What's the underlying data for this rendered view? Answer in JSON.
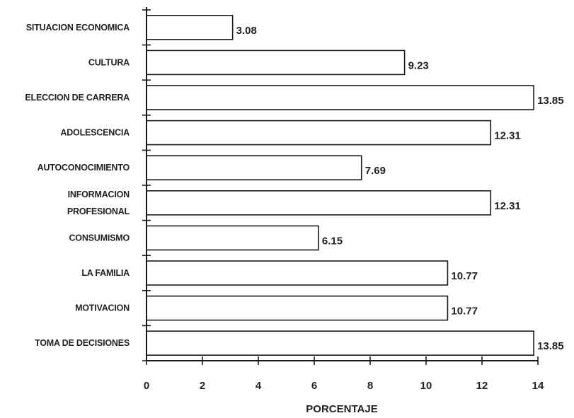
{
  "chart_data": {
    "type": "bar",
    "orientation": "horizontal",
    "categories": [
      "SITUACION ECONOMICA",
      "CULTURA",
      "ELECCION DE CARRERA",
      "ADOLESCENCIA",
      "AUTOCONOCIMIENTO",
      "INFORMACION PROFESIONAL",
      "CONSUMISMO",
      "LA FAMILIA",
      "MOTIVACION",
      "TOMA DE DECISIONES"
    ],
    "category_label_lines": [
      [
        "SITUACION ECONOMICA"
      ],
      [
        "CULTURA"
      ],
      [
        "ELECCION DE CARRERA"
      ],
      [
        "ADOLESCENCIA"
      ],
      [
        "AUTOCONOCIMIENTO"
      ],
      [
        "INFORMACION",
        "PROFESIONAL"
      ],
      [
        "CONSUMISMO"
      ],
      [
        "LA FAMILIA"
      ],
      [
        "MOTIVACION"
      ],
      [
        "TOMA DE DECISIONES"
      ]
    ],
    "values": [
      3.08,
      9.23,
      13.85,
      12.31,
      7.69,
      12.31,
      6.15,
      10.77,
      10.77,
      13.85
    ],
    "value_labels": [
      "3.08",
      "9.23",
      "13.85",
      "12.31",
      "7.69",
      "12.31",
      "6.15",
      "10.77",
      "10.77",
      "13.85"
    ],
    "title": "",
    "xlabel": "PORCENTAJE",
    "ylabel": "",
    "xlim": [
      0,
      14
    ],
    "xticks": [
      0,
      2,
      4,
      6,
      8,
      10,
      12,
      14
    ],
    "grid": false,
    "legend": "none"
  }
}
